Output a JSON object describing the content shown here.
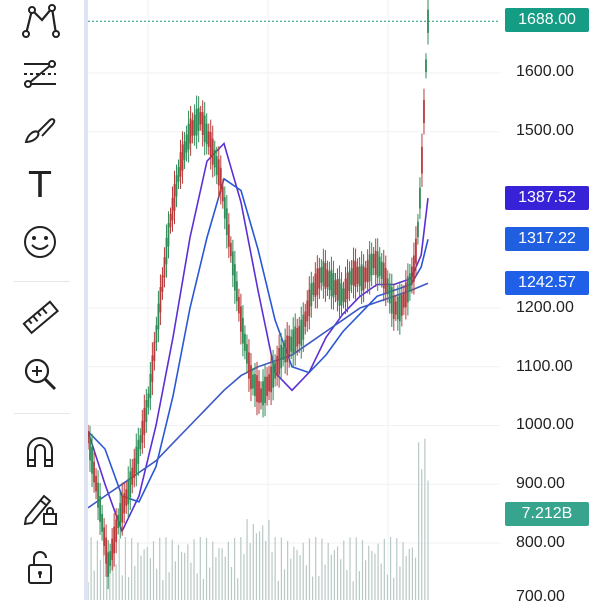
{
  "toolbar": {
    "tools": [
      {
        "id": "pattern",
        "icon": "pattern-icon"
      },
      {
        "id": "fib",
        "icon": "fib-retracement-icon"
      },
      {
        "id": "brush",
        "icon": "brush-icon"
      },
      {
        "id": "text",
        "icon": "text-icon",
        "glyph": "T"
      },
      {
        "id": "emoji",
        "icon": "smiley-icon"
      },
      {
        "id": "measure",
        "icon": "ruler-icon"
      },
      {
        "id": "zoom",
        "icon": "zoom-in-icon"
      },
      {
        "id": "magnet",
        "icon": "magnet-icon"
      },
      {
        "id": "lock-draw",
        "icon": "pencil-lock-icon"
      },
      {
        "id": "unlock",
        "icon": "unlock-icon"
      }
    ]
  },
  "chart_data": {
    "type": "line",
    "y_ticks": [
      "1600.00",
      "1500.00",
      "1200.00",
      "1100.00",
      "1000.00",
      "900.00",
      "800.00",
      "700.00"
    ],
    "y_tick_values": [
      1600,
      1500,
      1200,
      1100,
      1000,
      900,
      800,
      700
    ],
    "ylim": [
      700,
      1710
    ],
    "price_x": [
      0,
      3,
      6,
      9,
      12,
      15,
      18,
      21,
      24,
      27,
      30,
      33,
      36,
      39,
      42,
      45,
      48,
      51,
      54,
      57,
      60,
      63,
      66,
      69,
      72,
      75,
      78,
      81,
      84,
      86,
      88,
      90,
      92,
      94,
      96,
      97,
      98,
      99,
      100
    ],
    "price": [
      980,
      880,
      760,
      840,
      890,
      960,
      1050,
      1200,
      1340,
      1440,
      1500,
      1525,
      1480,
      1420,
      1300,
      1180,
      1080,
      1050,
      1080,
      1120,
      1140,
      1160,
      1230,
      1260,
      1240,
      1220,
      1260,
      1250,
      1280,
      1270,
      1240,
      1200,
      1200,
      1230,
      1270,
      1330,
      1420,
      1560,
      1688
    ],
    "series": [
      {
        "label": "1387.52",
        "color": "#5b2fd6",
        "x": [
          0,
          5,
          10,
          15,
          20,
          25,
          30,
          35,
          40,
          45,
          50,
          55,
          60,
          65,
          70,
          75,
          80,
          85,
          90,
          95,
          98,
          100
        ],
        "values": [
          990,
          900,
          820,
          880,
          1000,
          1150,
          1320,
          1450,
          1480,
          1380,
          1230,
          1090,
          1060,
          1090,
          1150,
          1190,
          1220,
          1240,
          1240,
          1250,
          1290,
          1387
        ]
      },
      {
        "label": "1317.22",
        "color": "#2a57d6",
        "x": [
          0,
          5,
          10,
          15,
          20,
          25,
          30,
          35,
          40,
          45,
          50,
          55,
          60,
          65,
          70,
          75,
          80,
          85,
          90,
          95,
          98,
          100
        ],
        "values": [
          990,
          960,
          880,
          870,
          930,
          1050,
          1200,
          1320,
          1420,
          1400,
          1300,
          1180,
          1100,
          1090,
          1120,
          1160,
          1190,
          1220,
          1230,
          1240,
          1270,
          1317
        ]
      },
      {
        "label": "1242.57",
        "color": "#3b58c4",
        "x": [
          0,
          5,
          10,
          15,
          20,
          25,
          30,
          35,
          40,
          45,
          50,
          55,
          60,
          65,
          70,
          75,
          80,
          85,
          90,
          95,
          100
        ],
        "values": [
          860,
          880,
          900,
          920,
          940,
          970,
          1000,
          1030,
          1060,
          1085,
          1100,
          1110,
          1120,
          1140,
          1160,
          1180,
          1200,
          1210,
          1220,
          1230,
          1242
        ]
      }
    ],
    "last_price": "1688.00",
    "last_price_value": 1688,
    "volume_label": "7.212B",
    "volume_level": 0.9,
    "colors": {
      "price": "#2e8b57",
      "last_badge": "#149c84",
      "volume_badge": "#37a58e",
      "volume": "#b8c8c4"
    }
  }
}
